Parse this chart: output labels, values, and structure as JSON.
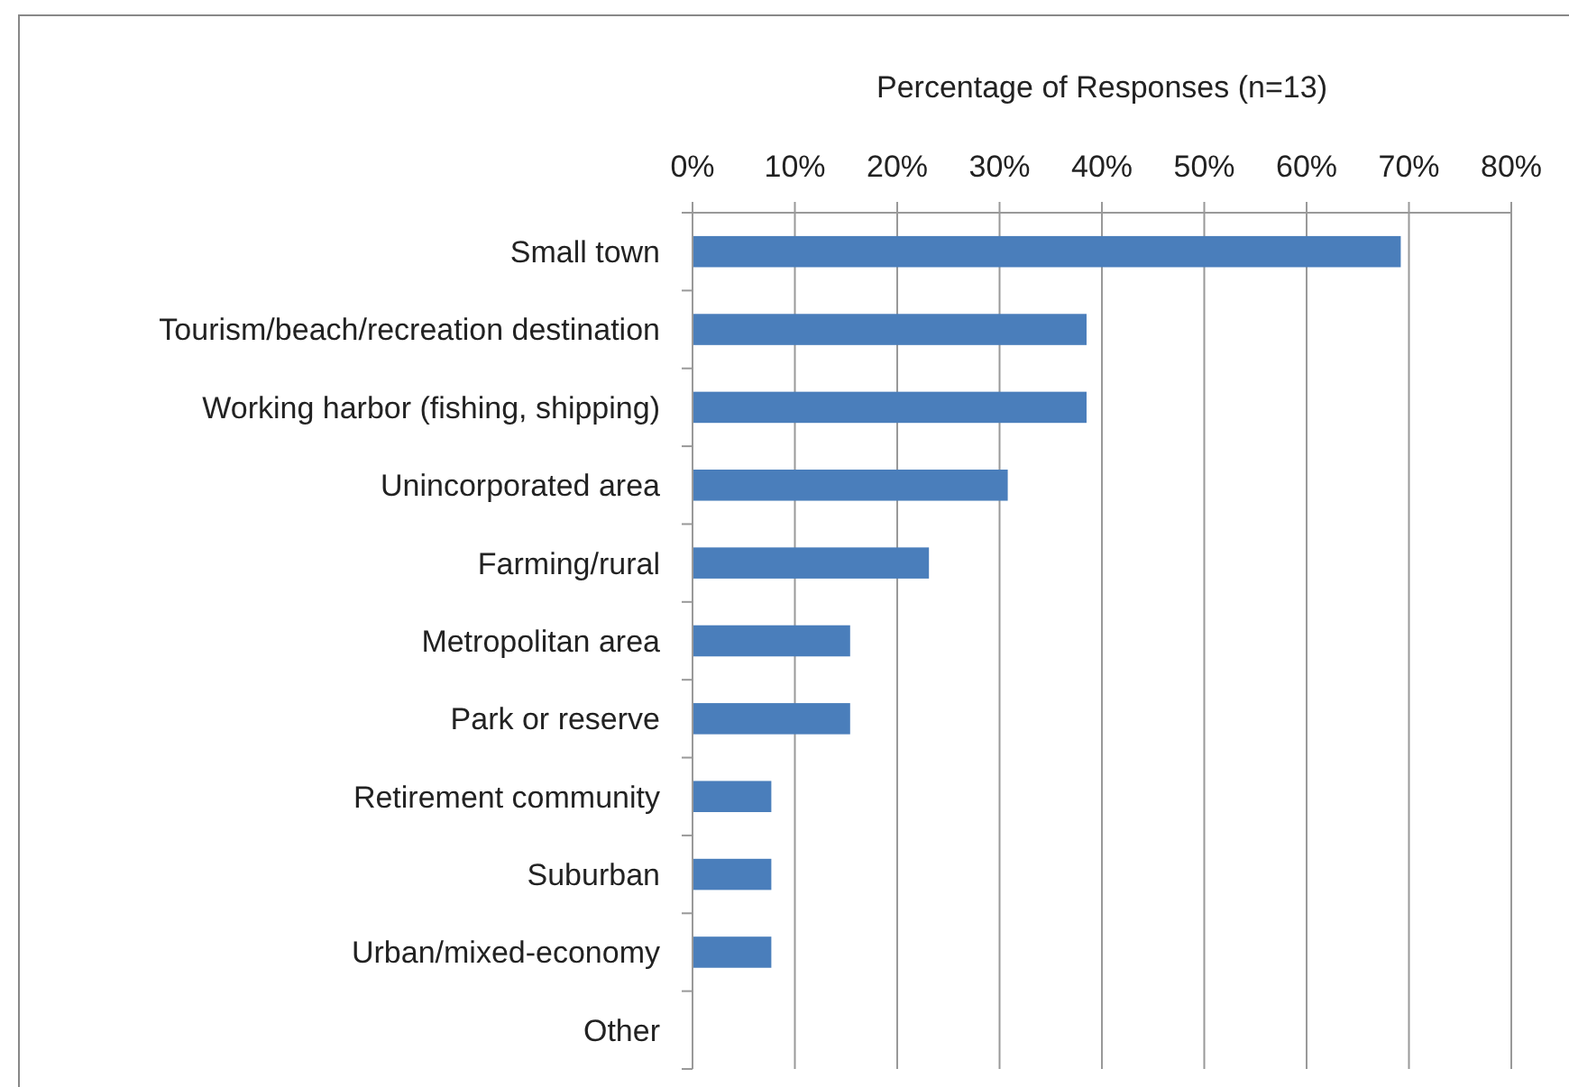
{
  "chart_data": {
    "type": "bar",
    "orientation": "horizontal",
    "xlabel": "Percentage of Responses (n=13)",
    "categories": [
      "Small town",
      "Tourism/beach/recreation destination",
      "Working harbor (fishing, shipping)",
      "Unincorporated area",
      "Farming/rural",
      "Metropolitan area",
      "Park or reserve",
      "Retirement community",
      "Suburban",
      "Urban/mixed-economy",
      "Other"
    ],
    "values": [
      69.2,
      38.5,
      38.5,
      30.8,
      23.1,
      15.4,
      15.4,
      7.7,
      7.7,
      7.7,
      0
    ],
    "color": "#4a7ebb",
    "xlim": [
      0,
      80
    ],
    "xticks": [
      {
        "value": 0,
        "label": "0%"
      },
      {
        "value": 10,
        "label": "10%"
      },
      {
        "value": 20,
        "label": "20%"
      },
      {
        "value": 30,
        "label": "30%"
      },
      {
        "value": 40,
        "label": "40%"
      },
      {
        "value": 50,
        "label": "50%"
      },
      {
        "value": 60,
        "label": "60%"
      },
      {
        "value": 70,
        "label": "70%"
      },
      {
        "value": 80,
        "label": "80%"
      }
    ],
    "grid": "x"
  }
}
